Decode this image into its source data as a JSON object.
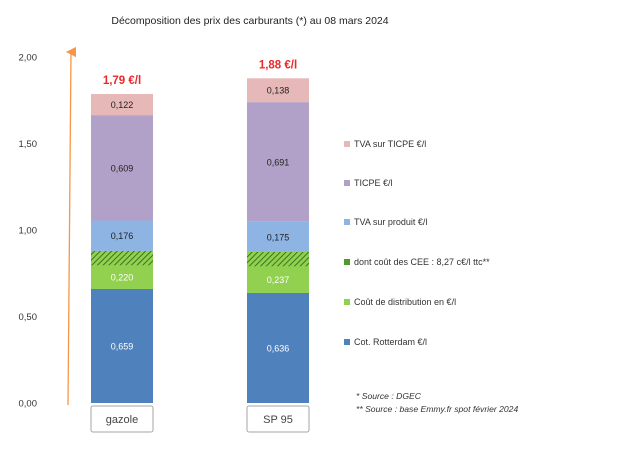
{
  "chart_data": {
    "type": "bar",
    "stacked": true,
    "title": "Décomposition des prix des carburants (*) au 08 mars 2024",
    "categories": [
      "gazole",
      "SP 95"
    ],
    "totals_labels": [
      "1,79 €/l",
      "1,88 €/l"
    ],
    "ylim": [
      0,
      2.0
    ],
    "y_ticks": [
      "0,00",
      "0,50",
      "1,00",
      "1,50",
      "2,00"
    ],
    "y_tick_values": [
      0,
      0.5,
      1.0,
      1.5,
      2.0
    ],
    "grid": false,
    "legend_position": "right",
    "series": [
      {
        "name": "Cot. Rotterdam €/l",
        "values": [
          0.659,
          0.636
        ],
        "labels": [
          "0,659",
          "0,636"
        ],
        "color": "#4f81bd"
      },
      {
        "name": "Coût de distribution en €/l",
        "values": [
          0.22,
          0.237
        ],
        "labels": [
          "0,220",
          "0,237"
        ],
        "color": "#92d050"
      },
      {
        "name": "dont coût des CEE : 8,27 c€/l ttc**",
        "values": [
          0.0827,
          0.0827
        ],
        "labels": [
          "",
          ""
        ],
        "color": "#4e9a2c",
        "pattern": "hatched"
      },
      {
        "name": "TVA sur produit €/l",
        "values": [
          0.176,
          0.175
        ],
        "labels": [
          "0,176",
          "0,175"
        ],
        "color": "#8db4e2"
      },
      {
        "name": "TICPE €/l",
        "values": [
          0.609,
          0.691
        ],
        "labels": [
          "0,609",
          "0,691"
        ],
        "color": "#b1a0c7"
      },
      {
        "name": "TVA sur TICPE €/l",
        "values": [
          0.122,
          0.138
        ],
        "labels": [
          "0,122",
          "0,138"
        ],
        "color": "#e6b8b7"
      }
    ],
    "legend_order": [
      5,
      4,
      3,
      2,
      1,
      0
    ],
    "colors": {
      "total_label": "#e8292b",
      "arrow": "#f79646",
      "value_label_dark": "#ffffff",
      "value_label_light": "#222222"
    }
  },
  "sources": {
    "line1": "* Source : DGEC",
    "line2": "** Source : base Emmy.fr spot février 2024"
  }
}
